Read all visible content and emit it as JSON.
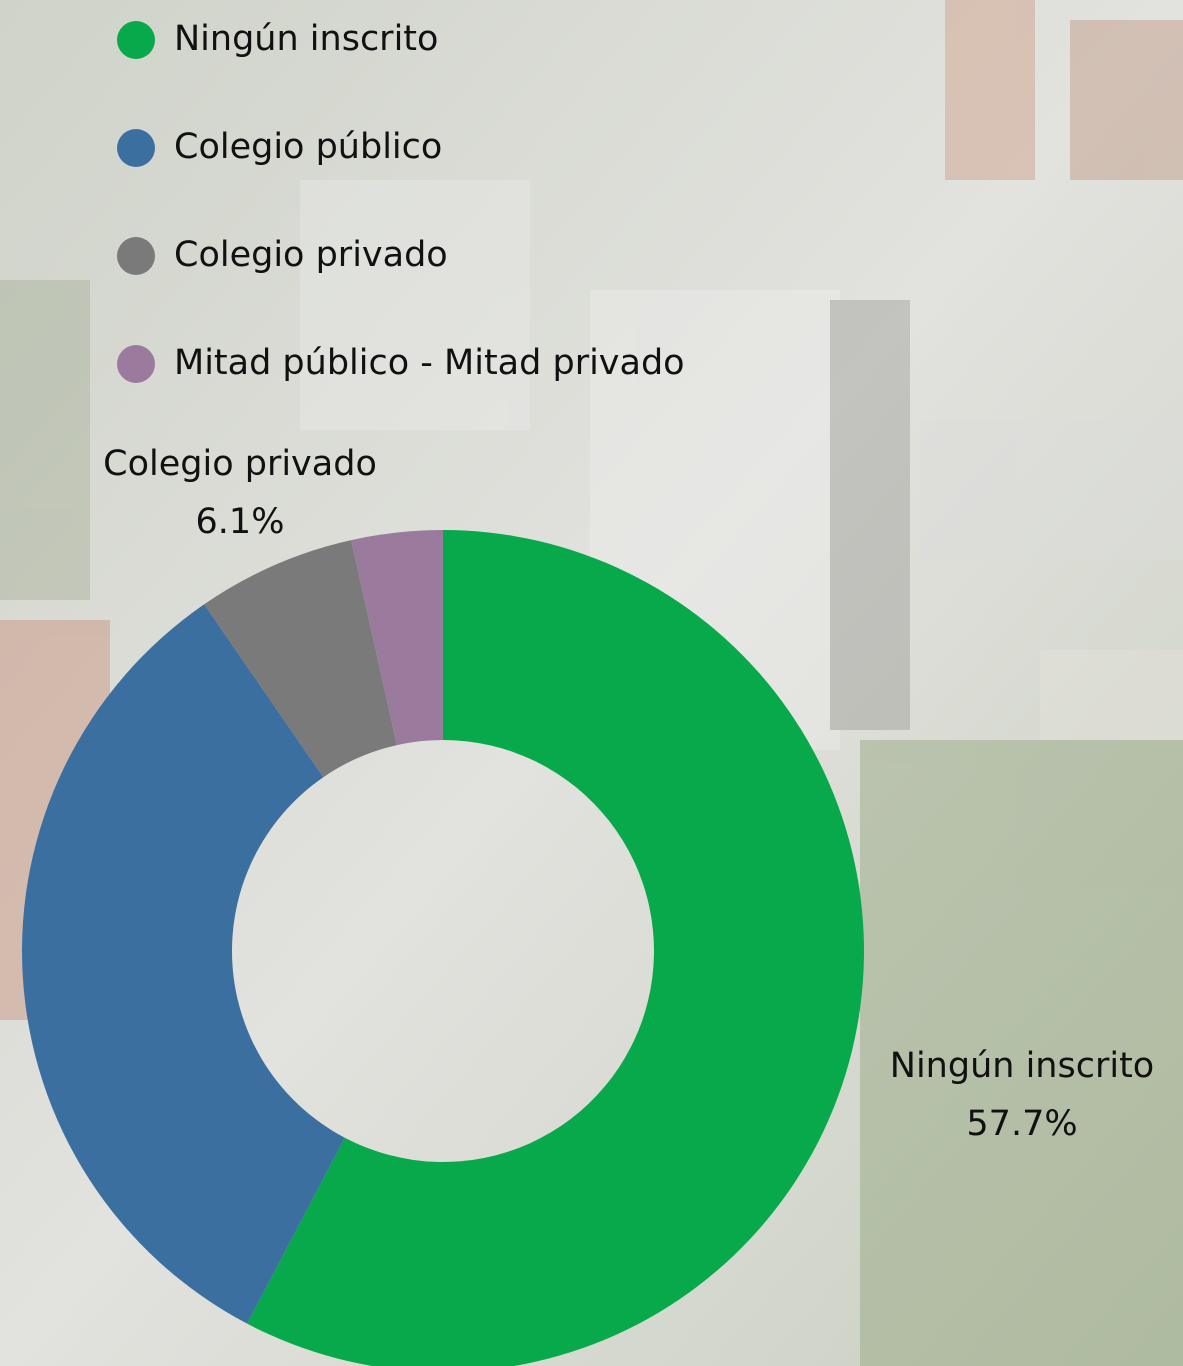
{
  "chart_data": {
    "type": "donut",
    "categories": [
      "Ningún inscrito",
      "Colegio público",
      "Colegio privado",
      "Mitad público - Mitad privado"
    ],
    "values": [
      57.7,
      32.7,
      6.1,
      3.5
    ],
    "value_labels": [
      "57.7%",
      null,
      "6.1%",
      null
    ],
    "colors": [
      "#07a94b",
      "#3b6fa0",
      "#7a7a7a",
      "#9a7b9d"
    ],
    "legend": "top-left"
  }
}
